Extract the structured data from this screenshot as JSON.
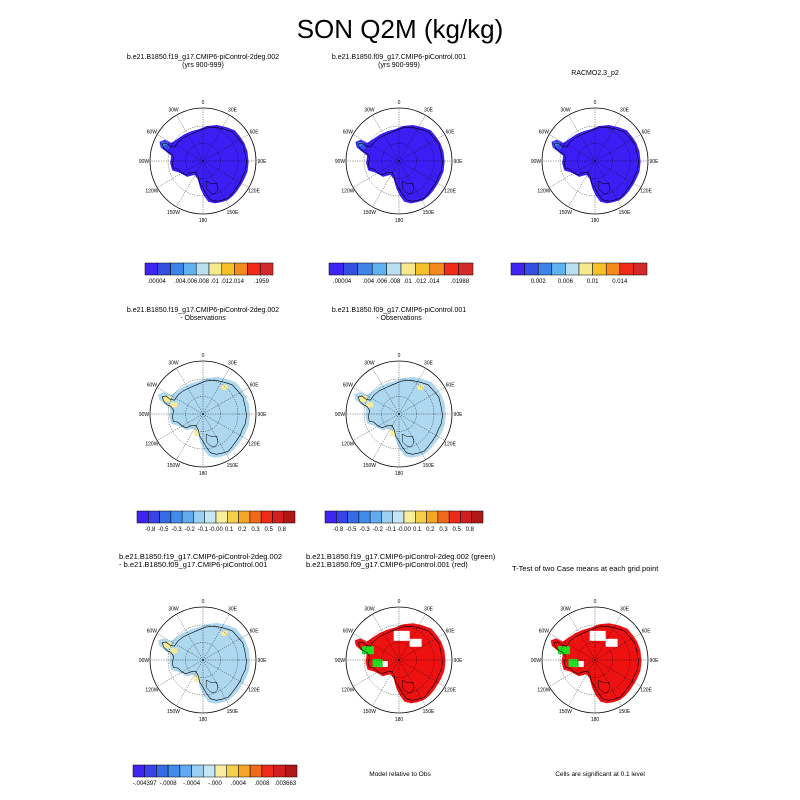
{
  "title": "SON Q2M (kg/kg)",
  "colors": {
    "ramp9": [
      "#3f24f2",
      "#3550e0",
      "#3f82e8",
      "#5fb3f0",
      "#b8def0",
      "#f6e98c",
      "#f5c02a",
      "#f28a1e",
      "#ef2a18",
      "#d22a2a"
    ],
    "ramp13": [
      "#3f24f2",
      "#3a44e6",
      "#356be4",
      "#3f8cea",
      "#5faaf0",
      "#9cd0f2",
      "#c7e6f5",
      "#f8ee9e",
      "#f6cf4a",
      "#f4a726",
      "#f06a1c",
      "#ee2a18",
      "#d22020",
      "#b01818"
    ],
    "abs_fill": "#3c1ef5",
    "diff_fill": "#aed7f0",
    "pos_fill": "#f6ec98",
    "sig_red": "#ee1111",
    "sig_green": "#22dd22"
  },
  "panels": [
    {
      "id": "p1",
      "title": [
        "b.e21.B1850.f19_g17.CMIP6-piControl-2deg.002",
        "(yrs 900-999)"
      ],
      "fill": "abs",
      "colorbar": {
        "ramp": "ramp9",
        "labels": [
          ".00004",
          "",
          ".004",
          ".006",
          ".008",
          ".01",
          ".012",
          ".014",
          "",
          ".1959"
        ]
      }
    },
    {
      "id": "p2",
      "title": [
        "b.e21.B1850.f09_g17.CMIP6-piControl.001",
        "(yrs 900-999)"
      ],
      "fill": "abs",
      "colorbar": {
        "ramp": "ramp9",
        "labels": [
          ".00004",
          "",
          ".004",
          ".006",
          ".008",
          ".01",
          ".012",
          ".014",
          "",
          ".01988"
        ]
      }
    },
    {
      "id": "p3",
      "title": [
        "RACMO2.3_p2"
      ],
      "fill": "abs",
      "colorbar": {
        "ramp": "ramp9",
        "labels": [
          "",
          "0.002",
          "",
          "0.006",
          "",
          "0.01",
          "",
          "0.014",
          ""
        ]
      }
    },
    {
      "id": "p4",
      "title": [
        "b.e21.B1850.f19_g17.CMIP6-piControl-2deg.002",
        "- Observations"
      ],
      "fill": "diff",
      "colorbar": {
        "ramp": "ramp13",
        "labels": [
          "-0.8",
          "-0.5",
          "-0.3",
          "-0.2",
          "-0.1",
          "-0.00",
          "0.1",
          "0.2",
          "0.3",
          "0.5",
          "0.8"
        ]
      }
    },
    {
      "id": "p5",
      "title": [
        "b.e21.B1850.f09_g17.CMIP6-piControl.001",
        "- Observations"
      ],
      "fill": "diff",
      "colorbar": {
        "ramp": "ramp13",
        "labels": [
          "-0.8",
          "-0.5",
          "-0.3",
          "-0.2",
          "-0.1",
          "-0.00",
          "0.1",
          "0.2",
          "0.3",
          "0.5",
          "0.8"
        ]
      }
    },
    {
      "id": "p6",
      "title": [
        "b.e21.B1850.f19_g17.CMIP6-piControl-2deg.002",
        "- b.e21.B1850.f09_g17.CMIP6-piControl.001"
      ],
      "fill": "diff",
      "colorbar": {
        "ramp": "ramp13",
        "labels": [
          "-.004397",
          "",
          "-.0008",
          "",
          "-.0004",
          "",
          "-.000",
          "",
          ".0004",
          "",
          ".0008",
          "",
          ".003663"
        ]
      }
    },
    {
      "id": "p7",
      "title": [
        "b.e21.B1850.f19_g17.CMIP6-piControl-2deg.002 (green)",
        "b.e21.B1850.f09_g17.CMIP6-piControl.001 (red)"
      ],
      "fill": "sig"
    },
    {
      "id": "p8",
      "title": [
        "T-Test of two Case means at each grid point"
      ],
      "fill": "sig"
    }
  ],
  "footnotes": {
    "p7": "Model relative to Obs",
    "p8": "Cells are significant at 0.1 level"
  },
  "lon_labels": [
    "0",
    "30E",
    "60E",
    "90E",
    "120E",
    "150E",
    "180",
    "150W",
    "120W",
    "90W",
    "60W",
    "30W"
  ]
}
